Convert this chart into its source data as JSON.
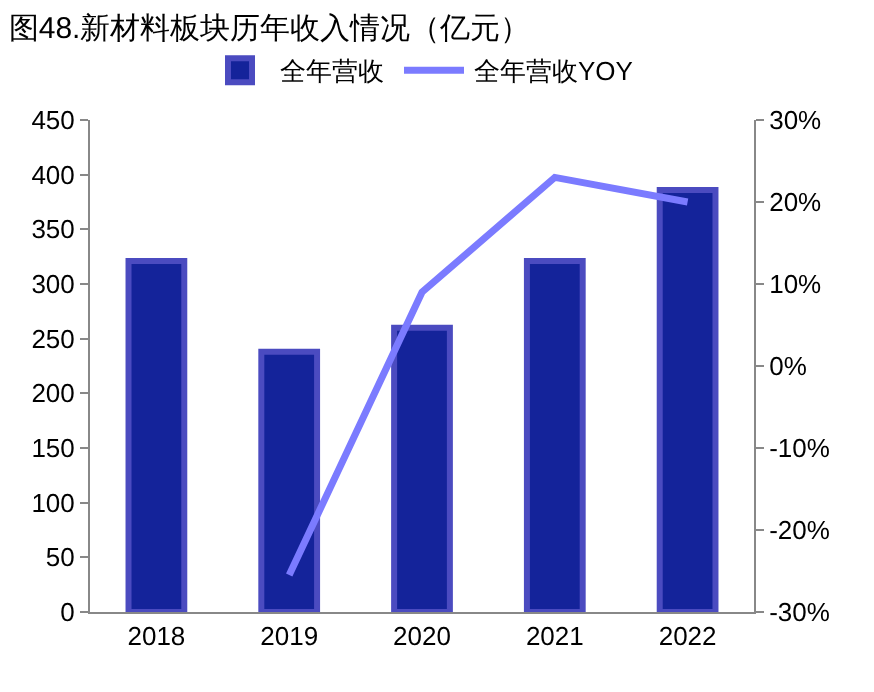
{
  "chart_data": {
    "type": "bar",
    "title": "图48.新材料板块历年收入情况（亿元）",
    "categories": [
      "2018",
      "2019",
      "2020",
      "2021",
      "2022"
    ],
    "series": [
      {
        "name": "全年营收",
        "color": "#14239a",
        "values": [
          321,
          238,
          260,
          321,
          386
        ]
      },
      {
        "name": "全年营收YOY",
        "type": "line",
        "axis": "y2",
        "color": "#7b7bff",
        "values": [
          null,
          -25.5,
          9,
          23,
          20
        ]
      }
    ],
    "ylim": [
      0,
      450
    ],
    "yticks": [
      0,
      50,
      100,
      150,
      200,
      250,
      300,
      350,
      400,
      450
    ],
    "y2lim": [
      -30,
      30
    ],
    "y2ticks": [
      {
        "value": -30,
        "label": "-30%"
      },
      {
        "value": -20,
        "label": "-20%"
      },
      {
        "value": -10,
        "label": "-10%"
      },
      {
        "value": 0,
        "label": "0%"
      },
      {
        "value": 10,
        "label": "10%"
      },
      {
        "value": 20,
        "label": "20%"
      },
      {
        "value": 30,
        "label": "30%"
      }
    ],
    "legend": "top",
    "grid": false
  }
}
